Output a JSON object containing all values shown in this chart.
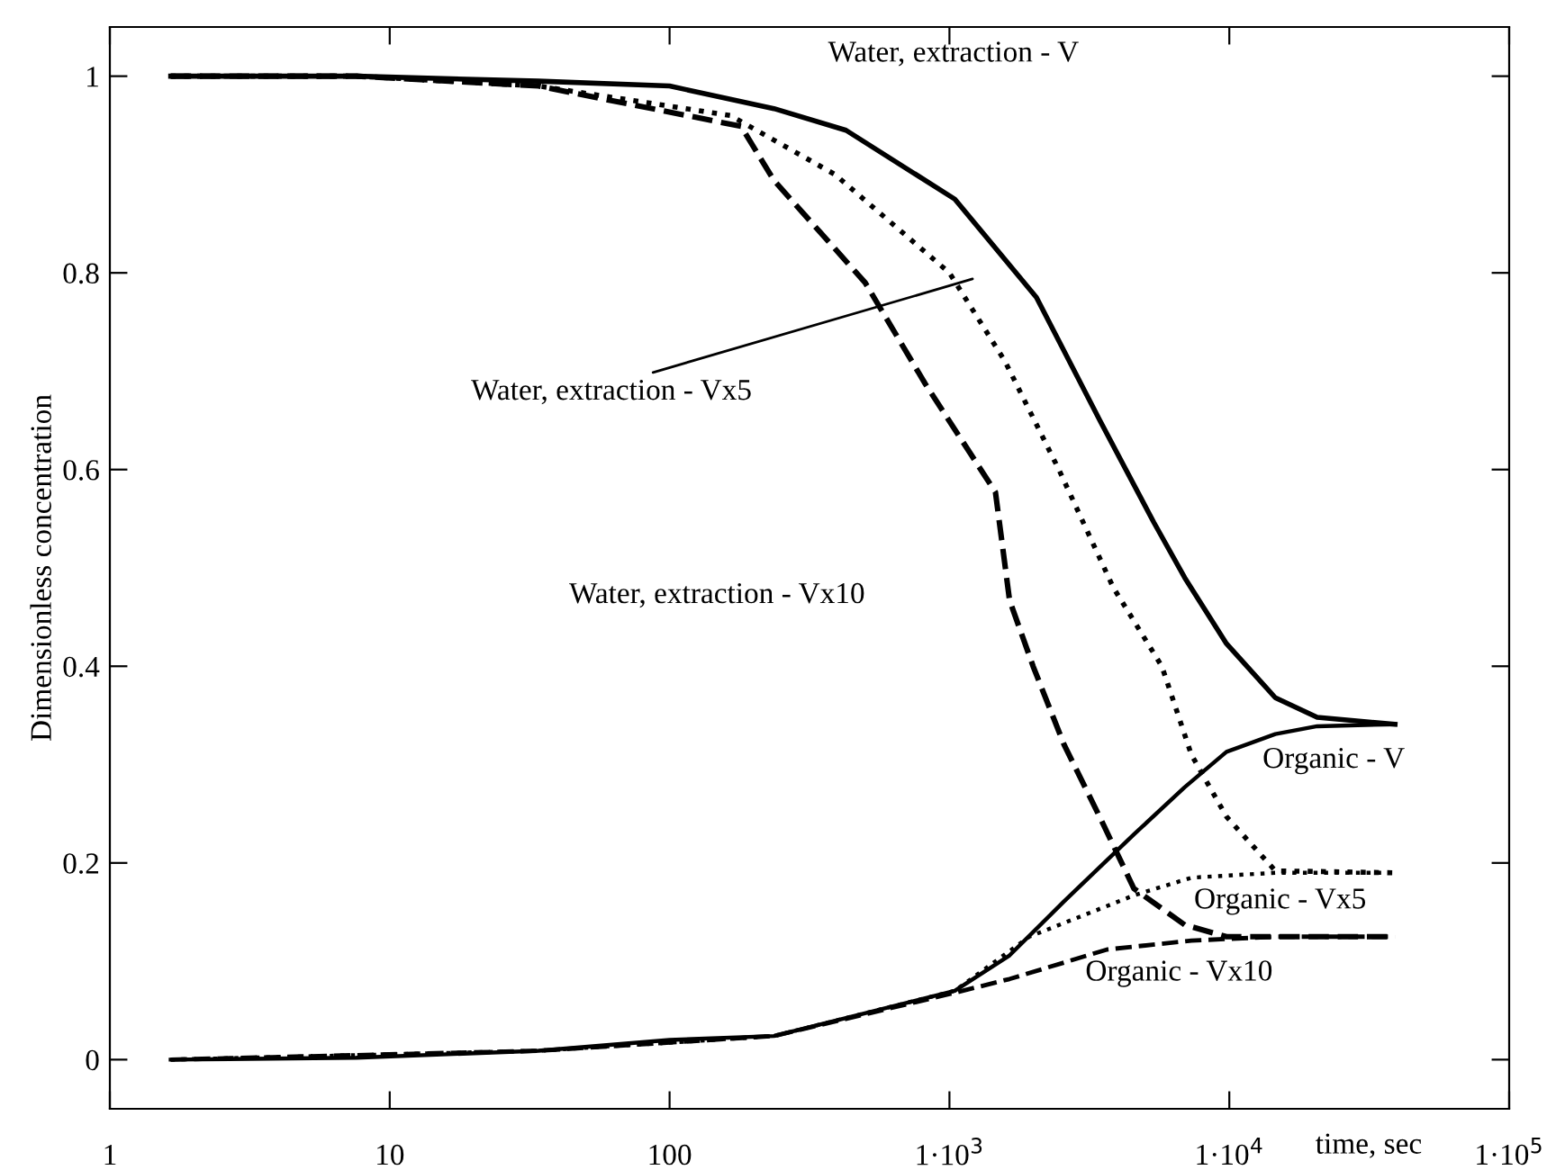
{
  "chart_data": {
    "type": "line",
    "xlabel": "time, sec",
    "ylabel": "Dimensionless concentration",
    "log": "x",
    "xlim": [
      1,
      100000
    ],
    "ylim": [
      -0.05,
      1.05
    ],
    "xticks": [
      1,
      10,
      100,
      {
        "value": 1000,
        "label": "1·10$^{3}$"
      },
      {
        "value": 10000,
        "label": "1·10$^{4}$"
      },
      {
        "value": 100000,
        "label": "1·10$^{5}$"
      }
    ],
    "yticks": [
      0,
      0.2,
      0.4,
      0.6,
      0.8,
      1
    ],
    "grid": false,
    "legend": false,
    "series": [
      {
        "color": "#000000",
        "line_style": "solid",
        "x": [
          1.65,
          7.6,
          34,
          100,
          236,
          427,
          1045,
          2046,
          3445,
          5380,
          6930,
          9770,
          14600,
          20600,
          39100
        ],
        "values": [
          1,
          1,
          0.995,
          0.99,
          0.967,
          0.945,
          0.875,
          0.775,
          0.65,
          0.546,
          0.49,
          0.423,
          0.368,
          0.348,
          0.341
        ]
      },
      {
        "color": "#000000",
        "line_style": "dotted",
        "x": [
          1.65,
          7.6,
          34,
          165,
          390,
          1000,
          1580,
          2460,
          3850,
          5740,
          7320,
          9770,
          14600,
          39100
        ],
        "values": [
          1,
          1,
          0.99,
          0.96,
          0.9,
          0.8,
          0.71,
          0.6,
          0.48,
          0.4,
          0.31,
          0.247,
          0.192,
          0.19
        ]
      },
      {
        "color": "#000000",
        "line_style": "dashed",
        "x": [
          1.65,
          7.6,
          34,
          180,
          236,
          500,
          820,
          1460,
          1640,
          1990,
          2570,
          3440,
          4560,
          6930,
          9770,
          39100
        ],
        "values": [
          1,
          1,
          0.99,
          0.949,
          0.894,
          0.79,
          0.687,
          0.577,
          0.467,
          0.4,
          0.32,
          0.247,
          0.174,
          0.137,
          0.125,
          0.125
        ]
      },
      {
        "color": "#000000",
        "line_style": "solid",
        "x": [
          1.65,
          7.6,
          34,
          100,
          236,
          1045,
          1640,
          2570,
          4560,
          6930,
          9770,
          14600,
          20600,
          39100
        ],
        "values": [
          0,
          0.002,
          0.009,
          0.02,
          0.024,
          0.07,
          0.106,
          0.161,
          0.229,
          0.277,
          0.313,
          0.331,
          0.339,
          0.341
        ]
      },
      {
        "color": "#000000",
        "line_style": "dotted",
        "x": [
          1.65,
          34,
          236,
          1045,
          1930,
          4560,
          7320,
          14600,
          39100
        ],
        "values": [
          0,
          0.009,
          0.024,
          0.07,
          0.125,
          0.167,
          0.185,
          0.19,
          0.19
        ]
      },
      {
        "color": "#000000",
        "line_style": "dashed",
        "x": [
          1.65,
          34,
          236,
          1045,
          1640,
          3660,
          7320,
          14600,
          39100
        ],
        "values": [
          0,
          0.009,
          0.024,
          0.068,
          0.082,
          0.112,
          0.121,
          0.125,
          0.125
        ]
      }
    ],
    "annotations": [
      {
        "text": "Water, extraction - V",
        "x": 342,
        "y": 0.96
      },
      "Water, extraction - Vx5",
      "Water, extraction - Vx10",
      {
        "text": "Organic - V",
        "x": 13150,
        "y": 0.326
      },
      {
        "text": "Organic - Vx5",
        "x": 7480,
        "y": 0.183
      },
      {
        "text": "Organic - Vx10",
        "x": 3060,
        "y": 0.117
      }
    ]
  }
}
